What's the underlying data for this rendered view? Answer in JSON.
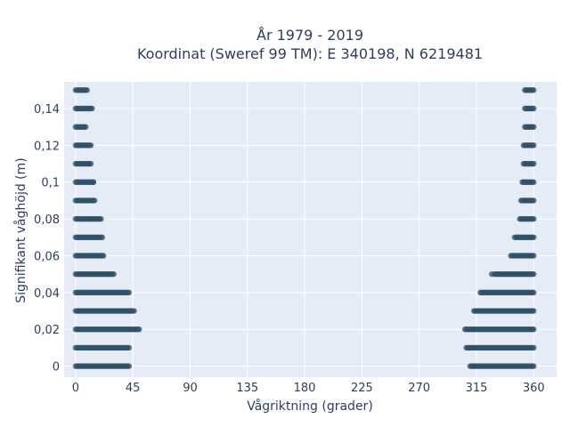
{
  "chart_data": {
    "type": "scatter",
    "title": [
      "År 1979 - 2019",
      "Koordinat (Sweref 99 TM): E 340198, N 6219481"
    ],
    "xlabel": "Vågriktning (grader)",
    "ylabel": "Signifikant våghöjd (m)",
    "xlim": [
      -9,
      378
    ],
    "ylim": [
      -0.006,
      0.1545
    ],
    "xticks": [
      0,
      45,
      90,
      135,
      180,
      225,
      270,
      315,
      360
    ],
    "xtick_labels": [
      "0",
      "45",
      "90",
      "135",
      "180",
      "225",
      "270",
      "315",
      "360"
    ],
    "yticks": [
      0,
      0.02,
      0.04,
      0.06,
      0.08,
      0.1,
      0.12,
      0.14
    ],
    "ytick_labels": [
      "0",
      "0,02",
      "0,04",
      "0,06",
      "0,08",
      "0,1",
      "0,12",
      "0,14"
    ],
    "grid": true,
    "legend": "none",
    "colors": {
      "plot_bg": "#e5ecf6",
      "grid": "#ffffff",
      "marker": "#2f5168",
      "text": "#2a3f5f"
    },
    "bands": [
      {
        "y": 0.0,
        "x_ranges": [
          [
            0,
            42
          ],
          [
            310,
            360
          ]
        ]
      },
      {
        "y": 0.01,
        "x_ranges": [
          [
            0,
            42
          ],
          [
            307,
            360
          ]
        ]
      },
      {
        "y": 0.02,
        "x_ranges": [
          [
            0,
            50
          ],
          [
            306,
            360
          ]
        ]
      },
      {
        "y": 0.03,
        "x_ranges": [
          [
            0,
            46
          ],
          [
            313,
            360
          ]
        ]
      },
      {
        "y": 0.04,
        "x_ranges": [
          [
            0,
            42
          ],
          [
            318,
            360
          ]
        ]
      },
      {
        "y": 0.05,
        "x_ranges": [
          [
            0,
            30
          ],
          [
            329,
            360
          ]
        ]
      },
      {
        "y": 0.06,
        "x_ranges": [
          [
            0,
            22
          ],
          [
            342,
            360
          ]
        ]
      },
      {
        "y": 0.07,
        "x_ranges": [
          [
            0,
            21
          ],
          [
            345,
            360
          ]
        ]
      },
      {
        "y": 0.08,
        "x_ranges": [
          [
            0,
            20
          ],
          [
            349,
            360
          ]
        ]
      },
      {
        "y": 0.09,
        "x_ranges": [
          [
            0,
            15
          ],
          [
            350,
            360
          ]
        ]
      },
      {
        "y": 0.1,
        "x_ranges": [
          [
            0,
            14
          ],
          [
            351,
            360
          ]
        ]
      },
      {
        "y": 0.11,
        "x_ranges": [
          [
            0,
            12
          ],
          [
            352,
            360
          ]
        ]
      },
      {
        "y": 0.12,
        "x_ranges": [
          [
            0,
            12
          ],
          [
            352,
            360
          ]
        ]
      },
      {
        "y": 0.13,
        "x_ranges": [
          [
            0,
            8
          ],
          [
            353,
            360
          ]
        ]
      },
      {
        "y": 0.14,
        "x_ranges": [
          [
            0,
            13
          ],
          [
            353,
            360
          ]
        ]
      },
      {
        "y": 0.15,
        "x_ranges": [
          [
            0,
            9
          ],
          [
            353,
            360
          ]
        ]
      }
    ],
    "outliers": [
      {
        "x": 14,
        "y": 0.1
      },
      {
        "x": 327,
        "y": 0.05
      }
    ]
  }
}
